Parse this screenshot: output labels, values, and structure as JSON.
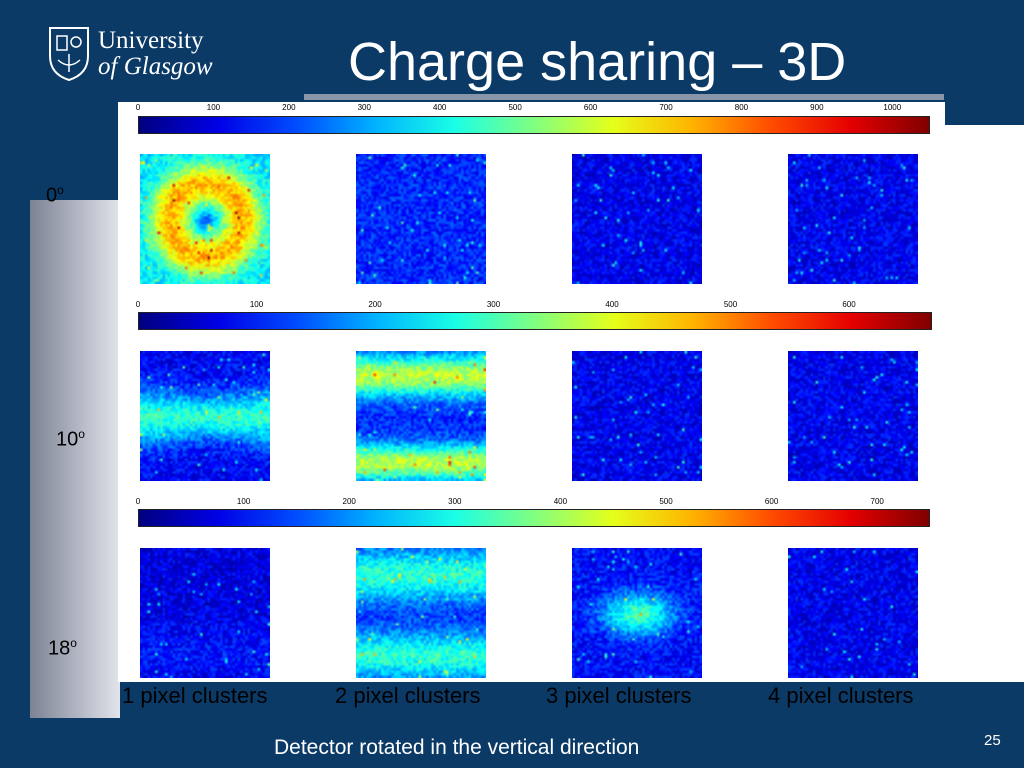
{
  "slide": {
    "title": "Charge sharing – 3D",
    "footer": "Detector rotated in the vertical direction",
    "page_number": "25"
  },
  "logo": {
    "line1": "University",
    "line2": "of Glasgow",
    "crest_icon": "university-crest-icon"
  },
  "columns": [
    "1 pixel clusters",
    "2 pixel clusters",
    "3 pixel clusters",
    "4 pixel clusters"
  ],
  "rows": [
    {
      "angle": "0",
      "angle_unit": "o",
      "colorbar": {
        "ticks": [
          "0",
          "100",
          "200",
          "300",
          "400",
          "500",
          "600",
          "700",
          "800",
          "900",
          "1000"
        ],
        "max": 1050
      },
      "maps": [
        "ring",
        "uniform-low",
        "sparse",
        "sparse"
      ]
    },
    {
      "angle": "10",
      "angle_unit": "o",
      "colorbar": {
        "ticks": [
          "0",
          "100",
          "200",
          "300",
          "400",
          "500",
          "600"
        ],
        "max": 670
      },
      "maps": [
        "horizontal-band",
        "top-bottom",
        "sparse",
        "sparse"
      ]
    },
    {
      "angle": "18",
      "angle_unit": "o",
      "colorbar": {
        "ticks": [
          "0",
          "100",
          "200",
          "300",
          "400",
          "500",
          "600",
          "700"
        ],
        "max": 750
      },
      "maps": [
        "faint",
        "top-bottom-wide",
        "center-blob",
        "sparse"
      ]
    }
  ],
  "colors": {
    "background": "#0b3a66",
    "panel": "#ffffff",
    "colormap": "jet"
  }
}
